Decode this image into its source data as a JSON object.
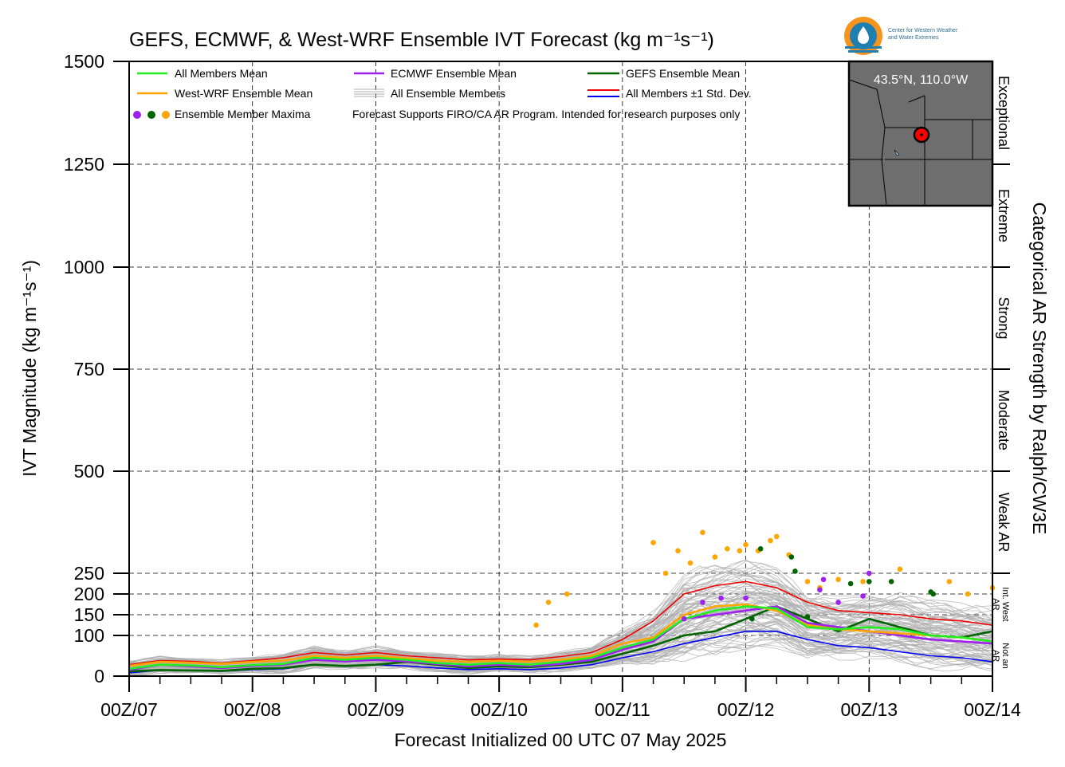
{
  "header": {
    "title": "GEFS, ECMWF, & West-WRF Ensemble IVT Forecast (kg m⁻¹s⁻¹)",
    "logo_line1": "Center for Western Weather",
    "logo_line2": "and Water Extremes"
  },
  "inset_map": {
    "coordinate_label": "43.5°N, 110.0°W"
  },
  "legend": {
    "all_members_mean": "All Members Mean",
    "ecmwf_mean": "ECMWF Ensemble Mean",
    "gefs_mean": "GEFS Ensemble Mean",
    "westwrf_mean": "West-WRF Ensemble Mean",
    "all_members": "All Ensemble Members",
    "std_dev": "All Members ±1 Std. Dev.",
    "maxima": "Ensemble Member Maxima",
    "note": "Forecast Supports FIRO/CA AR Program. Intended for research purposes only"
  },
  "chart_data": {
    "type": "line",
    "title": "GEFS, ECMWF, & West-WRF Ensemble IVT Forecast (kg m⁻¹s⁻¹)",
    "xlabel": "Forecast Initialized 00 UTC 07 May 2025",
    "ylabel": "IVT Magnitude (kg m⁻¹s⁻¹)",
    "right_label": "Categorical AR Strength by Ralph/CW3E",
    "x_ticks": [
      "00Z/07",
      "00Z/08",
      "00Z/09",
      "00Z/10",
      "00Z/11",
      "00Z/12",
      "00Z/13",
      "00Z/14"
    ],
    "y_ticks": [
      0,
      100,
      150,
      200,
      250,
      500,
      750,
      1000,
      1250,
      1500
    ],
    "ylim": [
      0,
      1500
    ],
    "xlim_days": [
      0,
      7
    ],
    "grid": true,
    "legend_position": "top-left",
    "categories_right": [
      {
        "label": "Exceptional",
        "from": 1250,
        "to": 1500
      },
      {
        "label": "Extreme",
        "from": 1000,
        "to": 1250
      },
      {
        "label": "Strong",
        "from": 750,
        "to": 1000
      },
      {
        "label": "Moderate",
        "from": 500,
        "to": 750
      },
      {
        "label": "Weak AR",
        "from": 250,
        "to": 500
      },
      {
        "label": "Int. West AR",
        "from": 100,
        "to": 250
      },
      {
        "label": "Not an AR",
        "from": 0,
        "to": 100
      }
    ],
    "colors": {
      "all_members_mean": "#22ee22",
      "ecmwf_mean": "#a020f0",
      "gefs_mean": "#006400",
      "westwrf_mean": "#ffa500",
      "members": "#b0b0b0",
      "std_upper": "#ee0000",
      "std_lower": "#0000ee"
    },
    "time_days": [
      0,
      0.25,
      0.5,
      0.75,
      1,
      1.25,
      1.5,
      1.75,
      2,
      2.25,
      2.5,
      2.75,
      3,
      3.25,
      3.5,
      3.75,
      4,
      4.25,
      4.5,
      4.75,
      5,
      5.25,
      5.5,
      5.75,
      6,
      6.25,
      6.5,
      6.75,
      7
    ],
    "series": [
      {
        "name": "All Members Mean",
        "key": "all_members_mean",
        "values": [
          18,
          28,
          26,
          22,
          27,
          30,
          45,
          40,
          45,
          40,
          32,
          28,
          32,
          28,
          35,
          45,
          70,
          90,
          140,
          160,
          170,
          165,
          120,
          115,
          120,
          115,
          100,
          95,
          85
        ]
      },
      {
        "name": "ECMWF Ensemble Mean",
        "key": "ecmwf_mean",
        "values": [
          15,
          28,
          24,
          20,
          25,
          28,
          40,
          36,
          40,
          36,
          30,
          24,
          28,
          25,
          30,
          40,
          65,
          85,
          140,
          150,
          160,
          170,
          130,
          120,
          110,
          100,
          90,
          85,
          80
        ]
      },
      {
        "name": "GEFS Ensemble Mean",
        "key": "gefs_mean",
        "values": [
          12,
          15,
          14,
          13,
          18,
          20,
          28,
          25,
          28,
          35,
          28,
          20,
          24,
          22,
          28,
          35,
          55,
          75,
          100,
          110,
          140,
          170,
          140,
          110,
          140,
          120,
          100,
          95,
          110
        ]
      },
      {
        "name": "West-WRF Ensemble Mean",
        "key": "westwrf_mean",
        "values": [
          25,
          35,
          33,
          30,
          35,
          38,
          50,
          45,
          50,
          44,
          38,
          35,
          38,
          35,
          40,
          50,
          80,
          95,
          150,
          170,
          175,
          160,
          125,
          115,
          110,
          105,
          100,
          95,
          85
        ]
      },
      {
        "name": "All Members +1 Std. Dev.",
        "key": "std_upper",
        "values": [
          28,
          38,
          36,
          32,
          38,
          45,
          58,
          52,
          58,
          50,
          45,
          40,
          42,
          40,
          48,
          58,
          90,
          135,
          200,
          220,
          230,
          215,
          180,
          160,
          155,
          150,
          140,
          135,
          125
        ]
      },
      {
        "name": "All Members -1 Std. Dev.",
        "key": "std_lower",
        "values": [
          8,
          15,
          14,
          12,
          16,
          18,
          28,
          24,
          28,
          25,
          20,
          16,
          18,
          16,
          20,
          28,
          45,
          60,
          80,
          95,
          110,
          110,
          90,
          75,
          70,
          60,
          50,
          45,
          35
        ]
      }
    ],
    "maxima": [
      {
        "x": 3.3,
        "y": 125,
        "c": "westwrf"
      },
      {
        "x": 3.4,
        "y": 180,
        "c": "westwrf"
      },
      {
        "x": 3.55,
        "y": 200,
        "c": "westwrf"
      },
      {
        "x": 4.25,
        "y": 325,
        "c": "westwrf"
      },
      {
        "x": 4.35,
        "y": 250,
        "c": "westwrf"
      },
      {
        "x": 4.45,
        "y": 305,
        "c": "westwrf"
      },
      {
        "x": 4.55,
        "y": 275,
        "c": "westwrf"
      },
      {
        "x": 4.65,
        "y": 350,
        "c": "westwrf"
      },
      {
        "x": 4.75,
        "y": 290,
        "c": "westwrf"
      },
      {
        "x": 4.85,
        "y": 310,
        "c": "westwrf"
      },
      {
        "x": 4.95,
        "y": 305,
        "c": "westwrf"
      },
      {
        "x": 5.0,
        "y": 320,
        "c": "westwrf"
      },
      {
        "x": 5.1,
        "y": 305,
        "c": "westwrf"
      },
      {
        "x": 5.2,
        "y": 330,
        "c": "westwrf"
      },
      {
        "x": 5.25,
        "y": 340,
        "c": "westwrf"
      },
      {
        "x": 5.35,
        "y": 295,
        "c": "westwrf"
      },
      {
        "x": 5.5,
        "y": 230,
        "c": "westwrf"
      },
      {
        "x": 5.6,
        "y": 215,
        "c": "westwrf"
      },
      {
        "x": 5.75,
        "y": 235,
        "c": "westwrf"
      },
      {
        "x": 5.95,
        "y": 230,
        "c": "westwrf"
      },
      {
        "x": 6.25,
        "y": 260,
        "c": "westwrf"
      },
      {
        "x": 6.65,
        "y": 230,
        "c": "westwrf"
      },
      {
        "x": 6.8,
        "y": 200,
        "c": "westwrf"
      },
      {
        "x": 7.0,
        "y": 215,
        "c": "westwrf"
      },
      {
        "x": 5.12,
        "y": 310,
        "c": "gefs"
      },
      {
        "x": 5.37,
        "y": 290,
        "c": "gefs"
      },
      {
        "x": 5.4,
        "y": 255,
        "c": "gefs"
      },
      {
        "x": 5.85,
        "y": 225,
        "c": "gefs"
      },
      {
        "x": 6.0,
        "y": 230,
        "c": "gefs"
      },
      {
        "x": 6.5,
        "y": 205,
        "c": "gefs"
      },
      {
        "x": 6.52,
        "y": 200,
        "c": "gefs"
      },
      {
        "x": 5.05,
        "y": 140,
        "c": "gefs"
      },
      {
        "x": 5.5,
        "y": 145,
        "c": "gefs"
      },
      {
        "x": 6.18,
        "y": 230,
        "c": "gefs"
      },
      {
        "x": 4.5,
        "y": 140,
        "c": "ecmwf"
      },
      {
        "x": 4.65,
        "y": 180,
        "c": "ecmwf"
      },
      {
        "x": 4.8,
        "y": 190,
        "c": "ecmwf"
      },
      {
        "x": 5.0,
        "y": 190,
        "c": "ecmwf"
      },
      {
        "x": 5.6,
        "y": 210,
        "c": "ecmwf"
      },
      {
        "x": 5.63,
        "y": 235,
        "c": "ecmwf"
      },
      {
        "x": 5.75,
        "y": 180,
        "c": "ecmwf"
      },
      {
        "x": 5.95,
        "y": 195,
        "c": "ecmwf"
      },
      {
        "x": 6.0,
        "y": 250,
        "c": "ecmwf"
      }
    ]
  }
}
